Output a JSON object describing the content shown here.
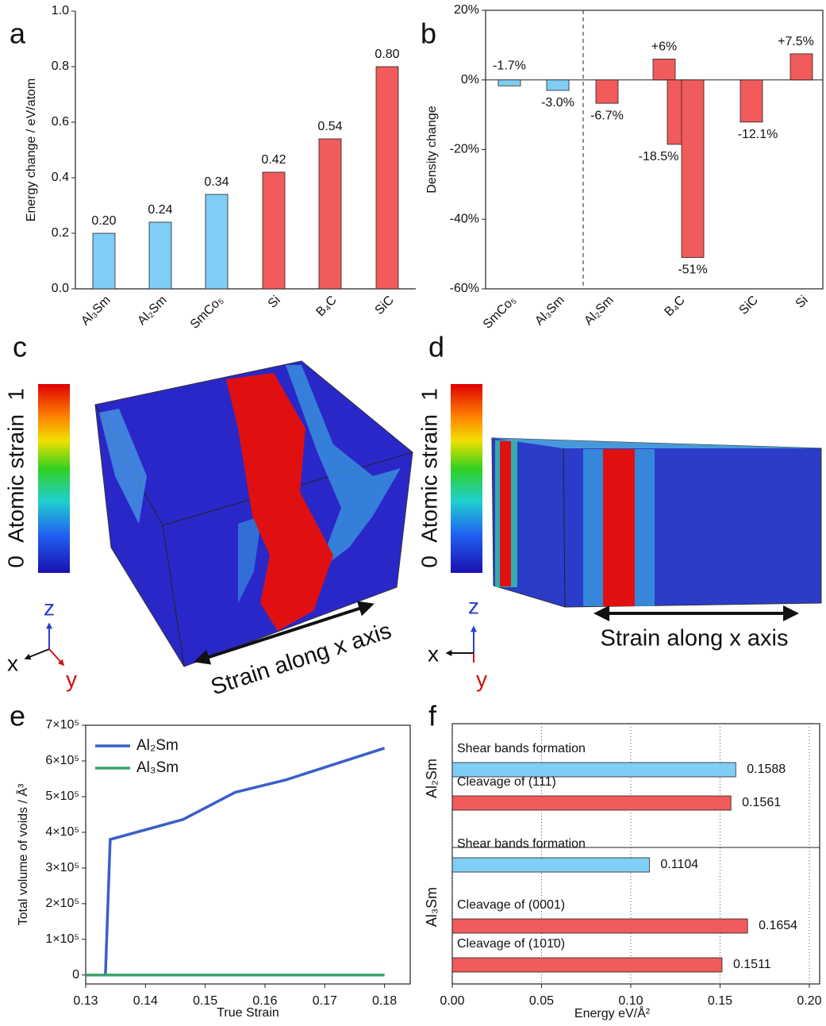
{
  "chart_data": [
    {
      "type": "bar",
      "panel_label": "a",
      "ylabel": "Energy change / eV/atom",
      "categories": [
        "Al₃Sm",
        "Al₂Sm",
        "SmCo₅",
        "Si",
        "B₄C",
        "SiC"
      ],
      "values": [
        0.2,
        0.24,
        0.34,
        0.42,
        0.54,
        0.8
      ],
      "value_labels": [
        "0.20",
        "0.24",
        "0.34",
        "0.42",
        "0.54",
        "0.80"
      ],
      "colors": [
        "#80cdf6",
        "#80cdf6",
        "#80cdf6",
        "#f15b5b",
        "#f15b5b",
        "#f15b5b"
      ],
      "ylim": [
        0,
        1
      ],
      "yticks": [
        {
          "value": 0,
          "label": "0.0"
        },
        0.2,
        0.4,
        0.6,
        0.8,
        {
          "value": 1,
          "label": "1.0"
        }
      ]
    },
    {
      "type": "bar",
      "panel_label": "b",
      "ylabel": "Density change",
      "categories": [
        "SmCo₅",
        "Al₃Sm",
        "Al₂Sm",
        null,
        "B₄C",
        null,
        "SiC",
        "Si"
      ],
      "values": [
        -1.7,
        -3.0,
        -6.7,
        6,
        -18.5,
        -51,
        -12.1,
        7.5
      ],
      "value_labels": [
        "-1.7%",
        "-3.0%",
        "-6.7%",
        "+6%",
        "-18.5%",
        "-51%",
        "-12.1%",
        "+7.5%"
      ],
      "colors": [
        "#80cdf6",
        "#80cdf6",
        "#f15b5b",
        "#f15b5b",
        "#f15b5b",
        "#f15b5b",
        "#f15b5b",
        "#f15b5b"
      ],
      "ylim": [
        -60,
        20
      ],
      "yticks": [
        {
          "value": -60,
          "label": "-60%"
        },
        {
          "value": -40,
          "label": "-40%"
        },
        {
          "value": -20,
          "label": "-20%"
        },
        {
          "value": 0,
          "label": "0%"
        },
        {
          "value": 20,
          "label": "20%"
        }
      ]
    },
    {
      "type": "line",
      "panel_label": "e",
      "xlabel": "True Strain",
      "ylabel": "Total volume of voids / Å³",
      "x": [
        0.13,
        0.1333,
        0.1341,
        0.1463,
        0.155,
        0.1635,
        0.18
      ],
      "series": [
        {
          "name": "Al₂Sm",
          "color": "#3a5fc8",
          "values": [
            0,
            0,
            380000,
            436000,
            512000,
            547000,
            636000
          ]
        },
        {
          "name": "Al₃Sm",
          "color": "#3ba36c",
          "values": [
            0,
            0,
            0,
            0,
            0,
            0,
            0
          ]
        }
      ],
      "xlim": [
        0.13,
        0.1843
      ],
      "ylim": [
        -25000,
        700000
      ],
      "xticks": [
        0.13,
        0.14,
        0.15,
        0.16,
        0.17,
        0.18
      ],
      "yticks": [
        0,
        {
          "value": 100000,
          "label": "1×10⁵"
        },
        {
          "value": 200000,
          "label": "2×10⁵"
        },
        {
          "value": 300000,
          "label": "3×10⁵"
        },
        {
          "value": 400000,
          "label": "4×10⁵"
        },
        {
          "value": 500000,
          "label": "5×10⁵"
        },
        {
          "value": 600000,
          "label": "6×10⁵"
        },
        {
          "value": 700000,
          "label": "7×10⁵"
        }
      ],
      "legend": "upper left"
    },
    {
      "type": "barh",
      "panel_label": "f",
      "xlabel": "Energy eV/Å²",
      "categories": [
        "Shear bands formation",
        "Cleavage of (111)",
        "Shear bands formation",
        "Cleavage of (0001)",
        "Cleavage of (101̄0)"
      ],
      "groups": [
        "Al₂Sm",
        "Al₂Sm",
        "Al₃Sm",
        "Al₃Sm",
        "Al₃Sm"
      ],
      "values": [
        0.1588,
        0.1561,
        0.1104,
        0.1654,
        0.1511
      ],
      "colors": [
        "#80cdf6",
        "#f15b5b",
        "#80cdf6",
        "#f15b5b",
        "#f15b5b"
      ],
      "xlim": [
        0,
        0.2058
      ],
      "xticks": [
        {
          "value": 0,
          "label": "0.00"
        },
        0.05,
        {
          "value": 0.1,
          "label": "0.10"
        },
        0.15,
        {
          "value": 0.2,
          "label": "0.20"
        }
      ],
      "grid": true
    }
  ],
  "panel_c": {
    "label": "c",
    "colorbar_title": "Atomic strain",
    "colorbar_ticks": [
      0,
      1
    ],
    "annotation": "Strain along x axis",
    "axes": {
      "z": "z",
      "x": "x",
      "y": "y"
    }
  },
  "panel_d": {
    "label": "d",
    "colorbar_title": "Atomic strain",
    "colorbar_ticks": [
      0,
      1
    ],
    "annotation": "Strain along x axis",
    "axes": {
      "z": "z",
      "x": "x",
      "y": "y"
    }
  }
}
